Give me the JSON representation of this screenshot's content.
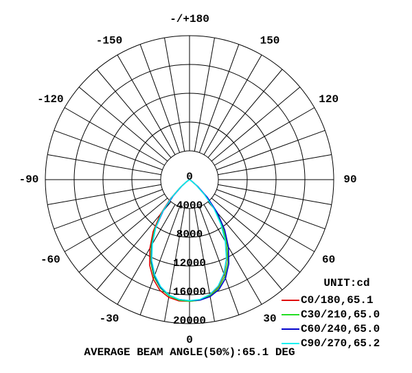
{
  "chart_data": {
    "type": "polar",
    "footer": "AVERAGE BEAM ANGLE(50%):65.1 DEG",
    "unit_label": "UNIT:cd",
    "rlim": [
      0,
      20000
    ],
    "rticks": [
      0,
      4000,
      8000,
      12000,
      16000,
      20000
    ],
    "angle_ticks": [
      0,
      30,
      60,
      90,
      120,
      150,
      {
        "value": 180,
        "label": "-/+180"
      },
      -150,
      -120,
      -90,
      -60,
      -30
    ],
    "x": [
      -70,
      -65,
      -60,
      -55,
      -50,
      -45,
      -40,
      -35,
      -30,
      -25,
      -20,
      -15,
      -10,
      -5,
      0,
      5,
      10,
      15,
      20,
      25,
      30,
      35,
      40,
      45,
      50,
      55,
      60,
      65,
      70
    ],
    "series": [
      {
        "name": "C0/180,65.1",
        "color": "#e00000",
        "values": [
          0,
          0,
          150,
          600,
          1700,
          3700,
          6300,
          8800,
          11000,
          13100,
          14700,
          15900,
          16600,
          16900,
          16900,
          16800,
          16300,
          15400,
          14000,
          12200,
          10000,
          7800,
          5400,
          3000,
          1200,
          350,
          50,
          0,
          0
        ]
      },
      {
        "name": "C30/210,65.0",
        "color": "#22dd22",
        "values": [
          0,
          0,
          100,
          500,
          1500,
          3400,
          5900,
          8400,
          10600,
          12700,
          14400,
          15600,
          16400,
          16800,
          16900,
          16800,
          16400,
          15600,
          14300,
          12600,
          10400,
          8100,
          5700,
          3200,
          1300,
          400,
          80,
          0,
          0
        ]
      },
      {
        "name": "C60/240,65.0",
        "color": "#0000cc",
        "values": [
          0,
          0,
          80,
          450,
          1400,
          3200,
          5700,
          8200,
          10400,
          12500,
          14200,
          15500,
          16300,
          16700,
          16800,
          16800,
          16500,
          15800,
          14600,
          12900,
          10800,
          8500,
          6000,
          3500,
          1500,
          450,
          100,
          0,
          0
        ]
      },
      {
        "name": "C90/270,65.2",
        "color": "#00f0f0",
        "values": [
          0,
          0,
          120,
          550,
          1600,
          3500,
          5900,
          8200,
          10300,
          12400,
          14100,
          15400,
          16300,
          16700,
          16800,
          16700,
          16200,
          15300,
          13900,
          12100,
          9900,
          7600,
          5300,
          2900,
          1200,
          350,
          60,
          0,
          0
        ]
      }
    ]
  }
}
